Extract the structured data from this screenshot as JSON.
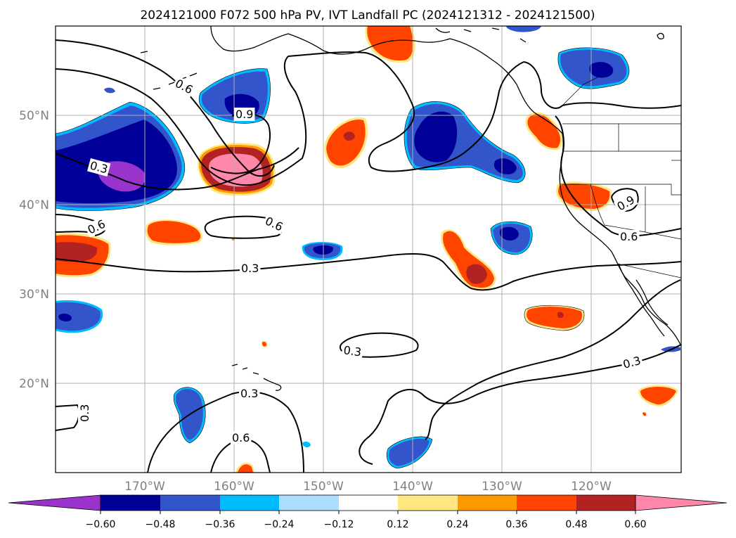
{
  "title": "2024121000 F072 500 hPa PV, IVT Landfall PC (2024121312 - 2024121500)",
  "map": {
    "lon_range": [
      -180,
      -110
    ],
    "lat_range": [
      10,
      60
    ],
    "lat_ticks": [
      "50°N",
      "40°N",
      "30°N",
      "20°N"
    ],
    "lon_ticks": [
      "170°W",
      "160°W",
      "150°W",
      "140°W",
      "130°W",
      "120°W"
    ],
    "grid": true,
    "ocean_color": "#ffffff",
    "coastline_color": "#000000"
  },
  "colorbar": {
    "orientation": "horizontal",
    "extend": "both",
    "labels": [
      "−0.60",
      "−0.48",
      "−0.36",
      "−0.24",
      "−0.12",
      "0.12",
      "0.24",
      "0.36",
      "0.48",
      "0.60"
    ],
    "colors": [
      "#9933cc",
      "#000099",
      "#3355cc",
      "#00bbff",
      "#aaddff",
      "#ffffff",
      "#ffe680",
      "#ff9900",
      "#ff4400",
      "#b22222",
      "#ff88aa"
    ]
  },
  "contours": {
    "labels": [
      {
        "text": "0.6",
        "lon": -161.5,
        "lat": 56.3
      },
      {
        "text": "0.3",
        "lon": -174.5,
        "lat": 42.4
      },
      {
        "text": "0.9",
        "lon": -158.0,
        "lat": 49.9
      },
      {
        "text": "0.6",
        "lon": -175.0,
        "lat": 37.6
      },
      {
        "text": "0.6",
        "lon": -155.6,
        "lat": 37.8
      },
      {
        "text": "0.3",
        "lon": -156.2,
        "lat": 32.9
      },
      {
        "text": "0.3",
        "lon": -145.0,
        "lat": 23.7
      },
      {
        "text": "0.3",
        "lon": -116.8,
        "lat": 22.5
      },
      {
        "text": "0.9",
        "lon": -118.9,
        "lat": 39.9
      },
      {
        "text": "0.6",
        "lon": -118.8,
        "lat": 37.1
      },
      {
        "text": "0.3",
        "lon": -156.8,
        "lat": 19.0
      },
      {
        "text": "0.6",
        "lon": -158.0,
        "lat": 13.9
      },
      {
        "text": "0.3",
        "lon": -177.0,
        "lat": 16.5
      }
    ]
  }
}
